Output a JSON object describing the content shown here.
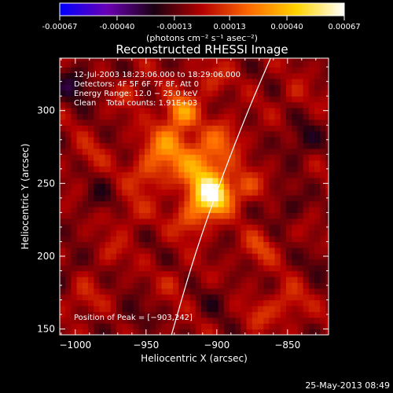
{
  "colorbar": {
    "tick_labels": [
      "-0.00067",
      "-0.00040",
      "-0.00013",
      "0.00013",
      "0.00040",
      "0.00067"
    ],
    "tick_values": [
      -0.00067,
      -0.0004,
      -0.00013,
      0.00013,
      0.0004,
      0.00067
    ],
    "range": [
      -0.00067,
      0.00067
    ],
    "unit_label": "(photons cm⁻² s⁻¹ asec⁻²)",
    "colors": [
      "#0000ff",
      "#6a00b4",
      "#1a0010",
      "#b40000",
      "#ff6a00",
      "#ffd400",
      "#ffffff"
    ]
  },
  "chart_data": {
    "type": "heatmap",
    "title": "Reconstructed RHESSI Image",
    "xlabel": "Heliocentric X (arcsec)",
    "ylabel": "Heliocentric Y (arcsec)",
    "xlim": [
      -1011,
      -821
    ],
    "ylim": [
      146,
      336
    ],
    "x_ticks": [
      -1000,
      -950,
      -900,
      -850
    ],
    "x_tick_labels": [
      "−1000",
      "−950",
      "−900",
      "−850"
    ],
    "y_ticks": [
      150,
      200,
      250,
      300
    ],
    "y_tick_labels": [
      "150",
      "200",
      "250",
      "300"
    ],
    "info_lines": [
      "12-Jul-2003 18:23:06.000 to 18:29:06.000",
      "Detectors: 4F 5F 6F 7F 8F, Att 0",
      "Energy Range: 12.0 − 25.0 keV",
      "Clean    Total counts: 1.91E+03"
    ],
    "peak_label": "Position of Peak = [−903,242]",
    "peak": [
      -903,
      242
    ],
    "blobs": [
      {
        "x": -903,
        "y": 242,
        "amp": 0.00067,
        "sigma": 9
      },
      {
        "x": -912,
        "y": 262,
        "amp": 0.00038,
        "sigma": 12
      },
      {
        "x": -925,
        "y": 300,
        "amp": 0.00036,
        "sigma": 8
      },
      {
        "x": -935,
        "y": 278,
        "amp": 0.0003,
        "sigma": 10
      },
      {
        "x": -948,
        "y": 258,
        "amp": 0.0002,
        "sigma": 10
      },
      {
        "x": -895,
        "y": 282,
        "amp": 0.00018,
        "sigma": 9
      },
      {
        "x": -918,
        "y": 226,
        "amp": 0.00022,
        "sigma": 9
      },
      {
        "x": -880,
        "y": 248,
        "amp": 0.00018,
        "sigma": 8
      },
      {
        "x": -960,
        "y": 230,
        "amp": 0.00012,
        "sigma": 8
      },
      {
        "x": -870,
        "y": 206,
        "amp": 0.00016,
        "sigma": 8
      },
      {
        "x": -960,
        "y": 312,
        "amp": 0.00012,
        "sigma": 7
      },
      {
        "x": -905,
        "y": 322,
        "amp": 0.00014,
        "sigma": 8
      },
      {
        "x": -990,
        "y": 270,
        "amp": 0.0001,
        "sigma": 8
      },
      {
        "x": -850,
        "y": 168,
        "amp": 0.00015,
        "sigma": 9
      },
      {
        "x": -870,
        "y": 160,
        "amp": 0.00012,
        "sigma": 7
      },
      {
        "x": -995,
        "y": 170,
        "amp": 0.00012,
        "sigma": 8
      },
      {
        "x": -975,
        "y": 203,
        "amp": 0.0001,
        "sigma": 7
      },
      {
        "x": -930,
        "y": 182,
        "amp": 9e-05,
        "sigma": 7
      },
      {
        "x": -845,
        "y": 310,
        "amp": 8e-05,
        "sigma": 7
      },
      {
        "x": -1000,
        "y": 318,
        "amp": -0.00018,
        "sigma": 9
      },
      {
        "x": -840,
        "y": 280,
        "amp": -0.00015,
        "sigma": 9
      },
      {
        "x": -850,
        "y": 235,
        "amp": -0.00012,
        "sigma": 8
      },
      {
        "x": -985,
        "y": 240,
        "amp": -0.0001,
        "sigma": 8
      },
      {
        "x": -960,
        "y": 158,
        "amp": -0.0001,
        "sigma": 8
      },
      {
        "x": -900,
        "y": 170,
        "amp": -8e-05,
        "sigma": 8
      },
      {
        "x": -1005,
        "y": 195,
        "amp": -0.0001,
        "sigma": 7
      },
      {
        "x": -828,
        "y": 196,
        "amp": -9e-05,
        "sigma": 7
      }
    ],
    "background_level": -6e-05,
    "limb_curve": [
      [
        -932,
        146
      ],
      [
        -916,
        200
      ],
      [
        -898,
        250
      ],
      [
        -878,
        300
      ],
      [
        -862,
        336
      ]
    ]
  },
  "footer": {
    "timestamp": "25-May-2013 08:49"
  }
}
